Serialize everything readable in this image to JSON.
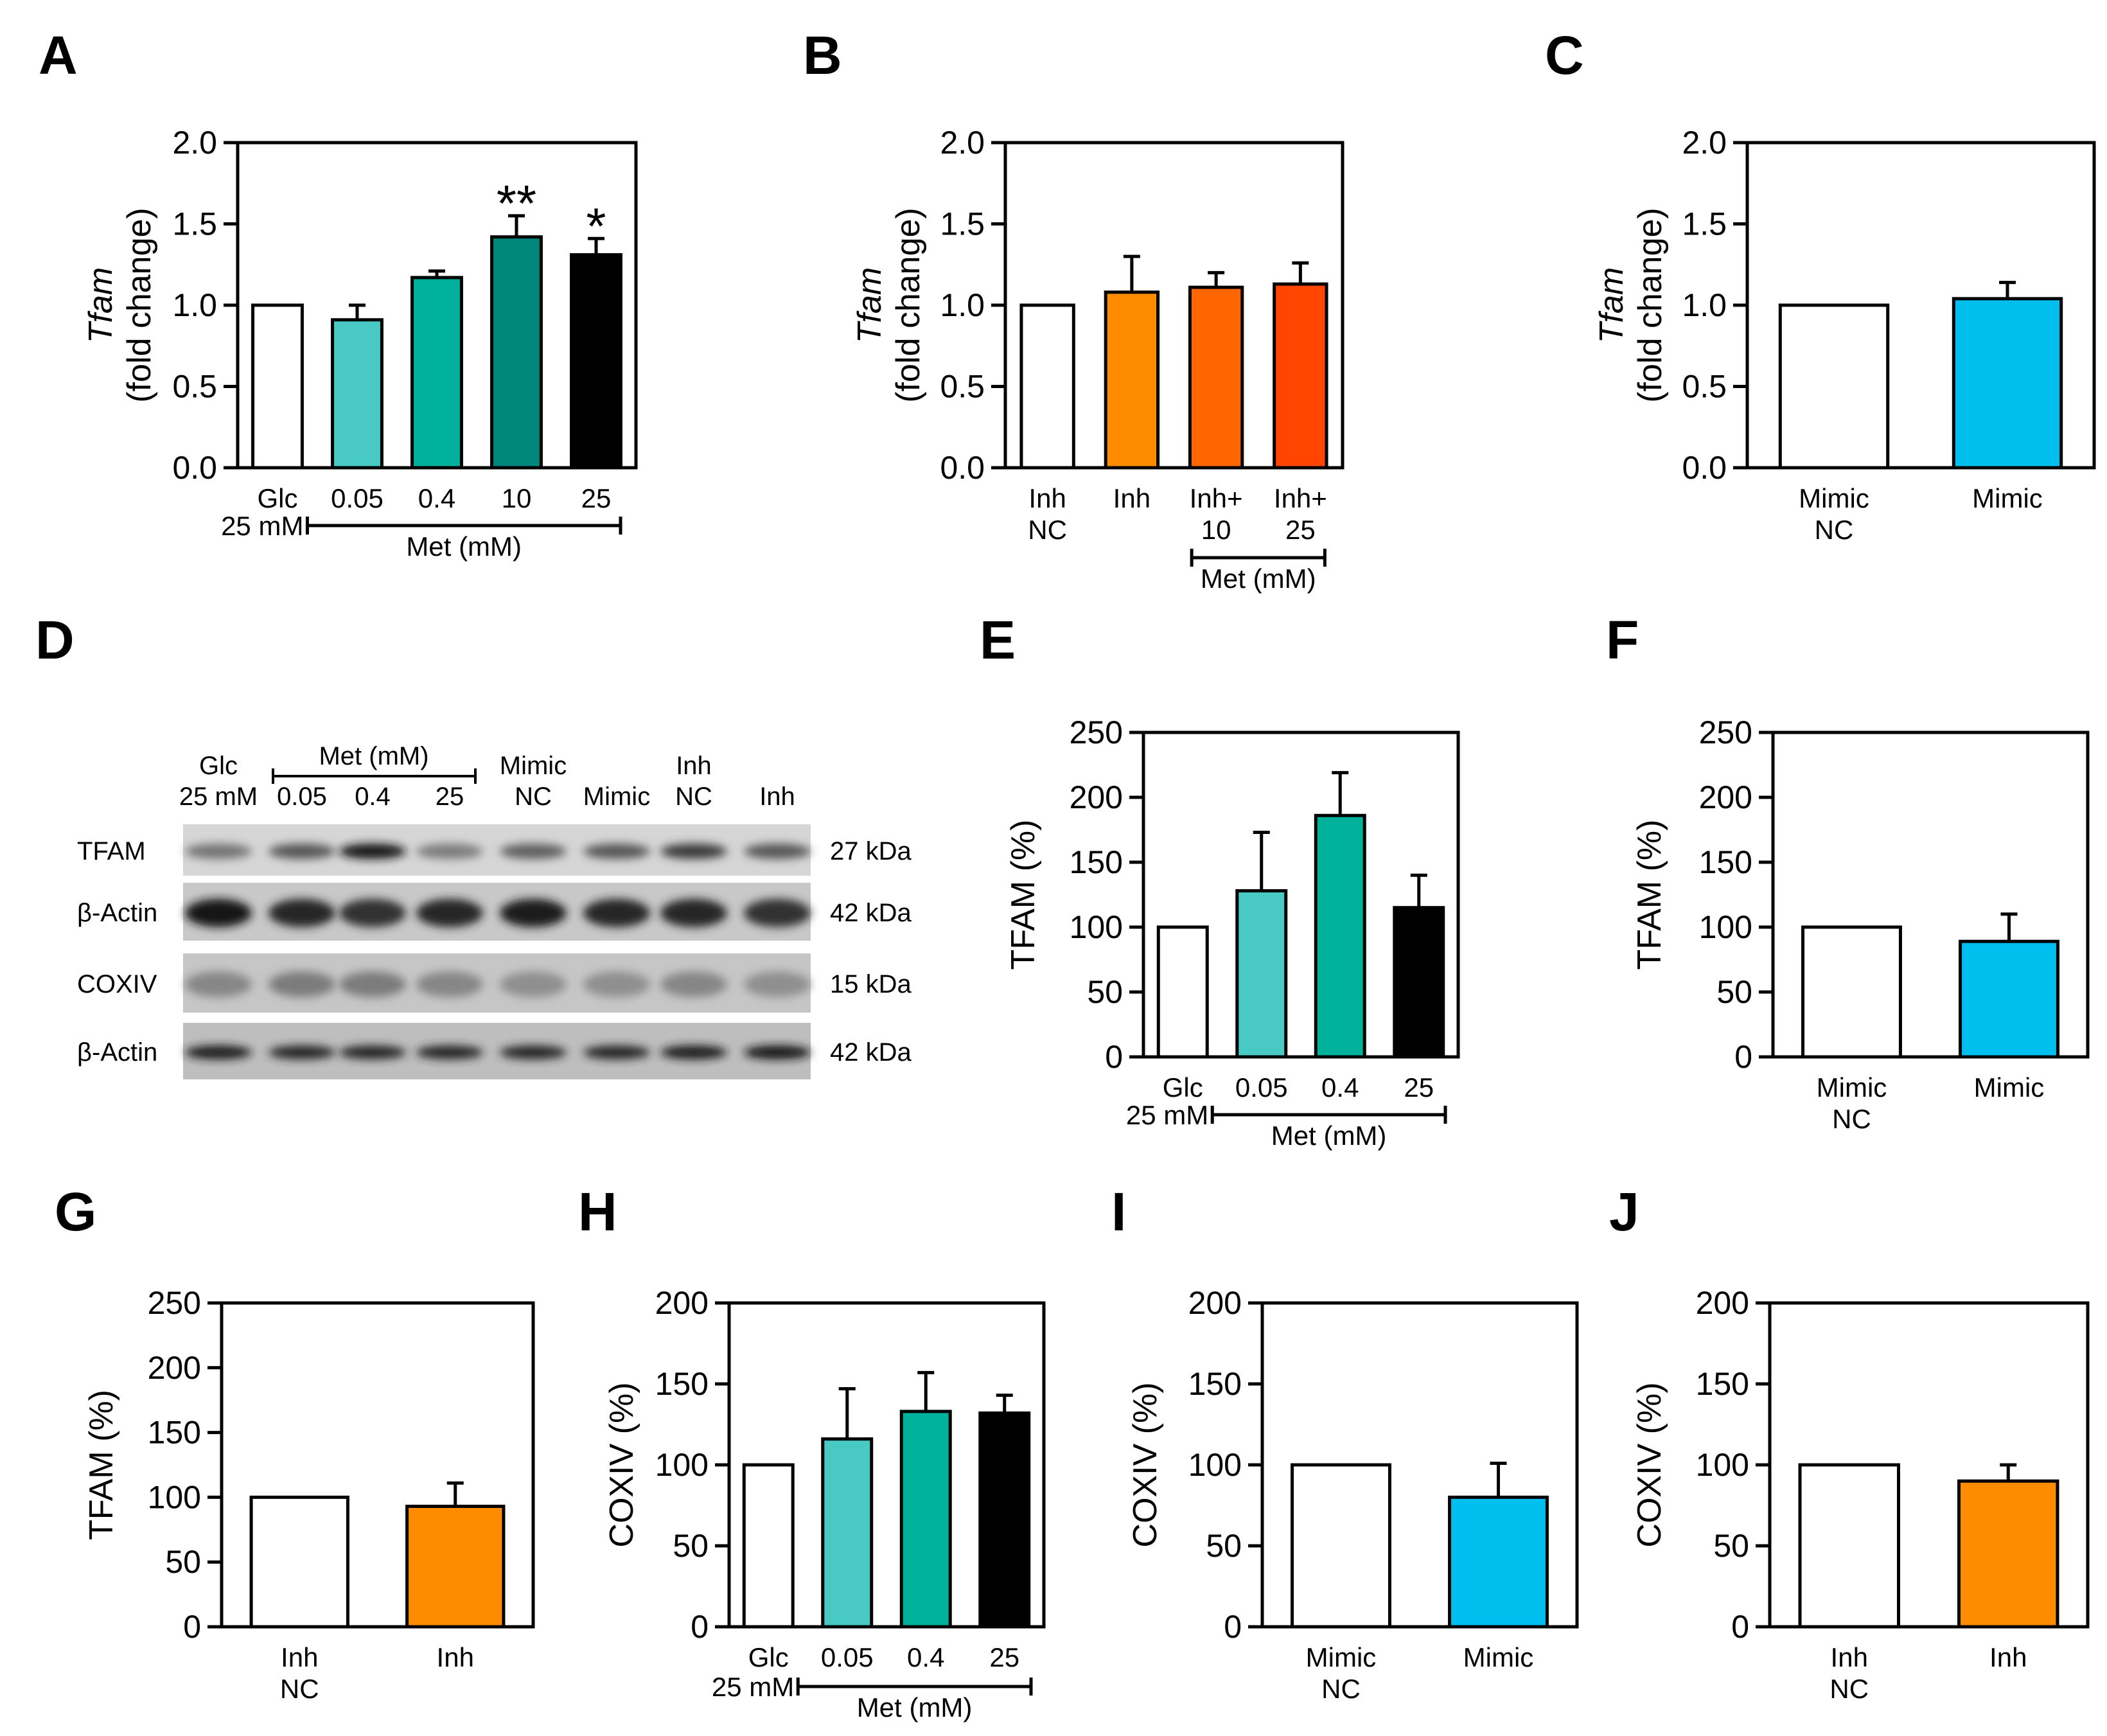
{
  "figure": {
    "panel_letters": [
      "A",
      "B",
      "C",
      "D",
      "E",
      "F",
      "G",
      "H",
      "I",
      "J"
    ]
  },
  "blot": {
    "row_labels": [
      "TFAM",
      "β-Actin",
      "COXIV",
      "β-Actin"
    ],
    "sizes": [
      "27 kDa",
      "42 kDa",
      "15 kDa",
      "42 kDa"
    ],
    "lane_labels": [
      {
        "lines": [
          "Glc",
          "25 mM"
        ]
      },
      {
        "lines": [
          "0.05"
        ]
      },
      {
        "lines": [
          "0.4"
        ]
      },
      {
        "lines": [
          "25"
        ]
      },
      {
        "lines": [
          "Mimic",
          "NC"
        ]
      },
      {
        "lines": [
          "Mimic"
        ]
      },
      {
        "lines": [
          "Inh",
          "NC"
        ]
      },
      {
        "lines": [
          "Inh"
        ]
      }
    ],
    "met_label": "Met (mM)",
    "band_intensity": {
      "TFAM": [
        0.45,
        0.6,
        0.95,
        0.4,
        0.55,
        0.6,
        0.75,
        0.6
      ],
      "actin1": [
        0.95,
        0.85,
        0.8,
        0.85,
        0.9,
        0.85,
        0.85,
        0.8
      ],
      "COXIV": [
        0.35,
        0.4,
        0.4,
        0.35,
        0.3,
        0.3,
        0.35,
        0.3
      ],
      "actin2": [
        0.9,
        0.85,
        0.85,
        0.85,
        0.85,
        0.85,
        0.9,
        0.95
      ]
    }
  },
  "chart_data": [
    {
      "panel": "A",
      "type": "bar",
      "ylabel_italic": "Tfam",
      "ylabel": "(fold change)",
      "ylim": [
        0,
        2.0
      ],
      "yticks": [
        "0.0",
        "0.5",
        "1.0",
        "1.5",
        "2.0"
      ],
      "categories": [
        {
          "lines": [
            "Glc"
          ]
        },
        {
          "lines": [
            "0.05"
          ]
        },
        {
          "lines": [
            "0.4"
          ]
        },
        {
          "lines": [
            "10"
          ]
        },
        {
          "lines": [
            "25"
          ]
        }
      ],
      "values": [
        1.0,
        0.91,
        1.17,
        1.42,
        1.31
      ],
      "errors": [
        0,
        0.09,
        0.04,
        0.13,
        0.1
      ],
      "colors": [
        "#ffffff",
        "#48c9c3",
        "#00b19c",
        "#00867b",
        "#000000"
      ],
      "annotations": [
        "",
        "",
        "",
        "**",
        "*"
      ],
      "group_prefix": "25 mM",
      "group_label": "Met (mM)"
    },
    {
      "panel": "B",
      "type": "bar",
      "ylabel_italic": "Tfam",
      "ylabel": "(fold change)",
      "ylim": [
        0,
        2.0
      ],
      "yticks": [
        "0.0",
        "0.5",
        "1.0",
        "1.5",
        "2.0"
      ],
      "categories": [
        {
          "lines": [
            "Inh",
            "NC"
          ]
        },
        {
          "lines": [
            "Inh"
          ]
        },
        {
          "lines": [
            "Inh+",
            "10"
          ]
        },
        {
          "lines": [
            "Inh+",
            "25"
          ]
        }
      ],
      "values": [
        1.0,
        1.08,
        1.11,
        1.13
      ],
      "errors": [
        0,
        0.22,
        0.09,
        0.13
      ],
      "colors": [
        "#ffffff",
        "#ff8c00",
        "#ff6600",
        "#ff4500"
      ],
      "group_label": "Met (mM)"
    },
    {
      "panel": "C",
      "type": "bar",
      "ylabel_italic": "Tfam",
      "ylabel": "(fold change)",
      "ylim": [
        0,
        2.0
      ],
      "yticks": [
        "0.0",
        "0.5",
        "1.0",
        "1.5",
        "2.0"
      ],
      "categories": [
        {
          "lines": [
            "Mimic",
            "NC"
          ]
        },
        {
          "lines": [
            "Mimic"
          ]
        }
      ],
      "values": [
        1.0,
        1.04
      ],
      "errors": [
        0,
        0.1
      ],
      "colors": [
        "#ffffff",
        "#00bfee"
      ]
    },
    {
      "panel": "E",
      "type": "bar",
      "ylabel": "TFAM (%)",
      "ylim": [
        0,
        250
      ],
      "yticks": [
        "0",
        "50",
        "100",
        "150",
        "200",
        "250"
      ],
      "categories": [
        {
          "lines": [
            "Glc"
          ]
        },
        {
          "lines": [
            "0.05"
          ]
        },
        {
          "lines": [
            "0.4"
          ]
        },
        {
          "lines": [
            "25"
          ]
        }
      ],
      "values": [
        100,
        128,
        186,
        115
      ],
      "errors": [
        0,
        45,
        33,
        25
      ],
      "colors": [
        "#ffffff",
        "#48c9c3",
        "#00b19c",
        "#000000"
      ],
      "group_prefix": "25 mM",
      "group_label": "Met (mM)"
    },
    {
      "panel": "F",
      "type": "bar",
      "ylabel": "TFAM (%)",
      "ylim": [
        0,
        250
      ],
      "yticks": [
        "0",
        "50",
        "100",
        "150",
        "200",
        "250"
      ],
      "categories": [
        {
          "lines": [
            "Mimic",
            "NC"
          ]
        },
        {
          "lines": [
            "Mimic"
          ]
        }
      ],
      "values": [
        100,
        89
      ],
      "errors": [
        0,
        21
      ],
      "colors": [
        "#ffffff",
        "#00bfee"
      ]
    },
    {
      "panel": "G",
      "type": "bar",
      "ylabel": "TFAM (%)",
      "ylim": [
        0,
        250
      ],
      "yticks": [
        "0",
        "50",
        "100",
        "150",
        "200",
        "250"
      ],
      "categories": [
        {
          "lines": [
            "Inh",
            "NC"
          ]
        },
        {
          "lines": [
            "Inh"
          ]
        }
      ],
      "values": [
        100,
        93
      ],
      "errors": [
        0,
        18
      ],
      "colors": [
        "#ffffff",
        "#ff8c00"
      ]
    },
    {
      "panel": "H",
      "type": "bar",
      "ylabel": "COXIV (%)",
      "ylim": [
        0,
        200
      ],
      "yticks": [
        "0",
        "50",
        "100",
        "150",
        "200"
      ],
      "categories": [
        {
          "lines": [
            "Glc"
          ]
        },
        {
          "lines": [
            "0.05"
          ]
        },
        {
          "lines": [
            "0.4"
          ]
        },
        {
          "lines": [
            "25"
          ]
        }
      ],
      "values": [
        100,
        116,
        133,
        132
      ],
      "errors": [
        0,
        31,
        24,
        11
      ],
      "colors": [
        "#ffffff",
        "#48c9c3",
        "#00b19c",
        "#000000"
      ],
      "group_prefix": "25 mM",
      "group_label": "Met (mM)"
    },
    {
      "panel": "I",
      "type": "bar",
      "ylabel": "COXIV (%)",
      "ylim": [
        0,
        200
      ],
      "yticks": [
        "0",
        "50",
        "100",
        "150",
        "200"
      ],
      "categories": [
        {
          "lines": [
            "Mimic",
            "NC"
          ]
        },
        {
          "lines": [
            "Mimic"
          ]
        }
      ],
      "values": [
        100,
        80
      ],
      "errors": [
        0,
        21
      ],
      "colors": [
        "#ffffff",
        "#00bfee"
      ]
    },
    {
      "panel": "J",
      "type": "bar",
      "ylabel": "COXIV (%)",
      "ylim": [
        0,
        200
      ],
      "yticks": [
        "0",
        "50",
        "100",
        "150",
        "200"
      ],
      "categories": [
        {
          "lines": [
            "Inh",
            "NC"
          ]
        },
        {
          "lines": [
            "Inh"
          ]
        }
      ],
      "values": [
        100,
        90
      ],
      "errors": [
        0,
        10
      ],
      "colors": [
        "#ffffff",
        "#ff8c00"
      ]
    }
  ]
}
